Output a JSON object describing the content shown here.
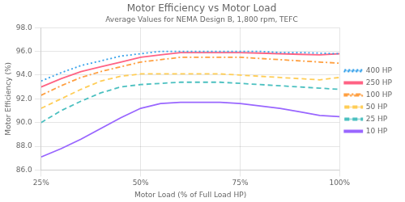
{
  "chart_data": {
    "type": "line",
    "title": "Motor Efficiency vs Motor Load",
    "subtitle": "Average Values for NEMA Design B, 1,800 rpm, TEFC",
    "xlabel": "Motor Load (% of Full Load HP)",
    "ylabel": "Motor Efficiency (%)",
    "xlim": [
      25,
      100
    ],
    "ylim": [
      86.0,
      98.0
    ],
    "xticks": [
      {
        "value": 25,
        "label": "25%"
      },
      {
        "value": 50,
        "label": "50%"
      },
      {
        "value": 75,
        "label": "75%"
      },
      {
        "value": 100,
        "label": "100%"
      }
    ],
    "yticks": [
      {
        "value": 86.0,
        "label": "86.0"
      },
      {
        "value": 88.0,
        "label": "88.0"
      },
      {
        "value": 90.0,
        "label": "90.0"
      },
      {
        "value": 92.0,
        "label": "92.0"
      },
      {
        "value": 94.0,
        "label": "94.0"
      },
      {
        "value": 96.0,
        "label": "96.0"
      },
      {
        "value": 98.0,
        "label": "98.0"
      }
    ],
    "grid": true,
    "legend": "right",
    "x": [
      25,
      30,
      35,
      40,
      45,
      50,
      55,
      60,
      65,
      70,
      75,
      80,
      85,
      90,
      95,
      100
    ],
    "series": [
      {
        "name": "400 HP",
        "line_style": "dotted",
        "values": [
          93.5,
          94.2,
          94.8,
          95.2,
          95.6,
          95.8,
          96.0,
          96.0,
          96.0,
          96.0,
          96.0,
          96.0,
          95.9,
          95.9,
          95.85,
          95.8
        ]
      },
      {
        "name": "250 HP",
        "line_style": "solid",
        "values": [
          93.0,
          93.7,
          94.3,
          94.7,
          95.1,
          95.5,
          95.7,
          95.9,
          95.9,
          95.9,
          95.9,
          95.85,
          95.8,
          95.75,
          95.7,
          95.8
        ]
      },
      {
        "name": "100 HP",
        "line_style": "dashdot",
        "values": [
          92.3,
          93.1,
          93.8,
          94.3,
          94.7,
          95.1,
          95.3,
          95.5,
          95.5,
          95.5,
          95.5,
          95.4,
          95.3,
          95.2,
          95.1,
          95.0
        ]
      },
      {
        "name": "50 HP",
        "line_style": "dashed",
        "values": [
          91.2,
          92.0,
          92.8,
          93.5,
          93.9,
          94.1,
          94.1,
          94.1,
          94.1,
          94.1,
          94.0,
          93.9,
          93.8,
          93.7,
          93.6,
          93.8
        ]
      },
      {
        "name": "25 HP",
        "line_style": "dashed",
        "values": [
          90.0,
          91.0,
          91.8,
          92.5,
          93.0,
          93.2,
          93.3,
          93.4,
          93.4,
          93.4,
          93.3,
          93.2,
          93.1,
          93.0,
          92.9,
          92.8
        ]
      },
      {
        "name": "10 HP",
        "line_style": "solid",
        "values": [
          87.1,
          87.8,
          88.6,
          89.5,
          90.4,
          91.2,
          91.6,
          91.7,
          91.7,
          91.7,
          91.6,
          91.4,
          91.2,
          90.9,
          90.6,
          90.5
        ]
      }
    ]
  }
}
